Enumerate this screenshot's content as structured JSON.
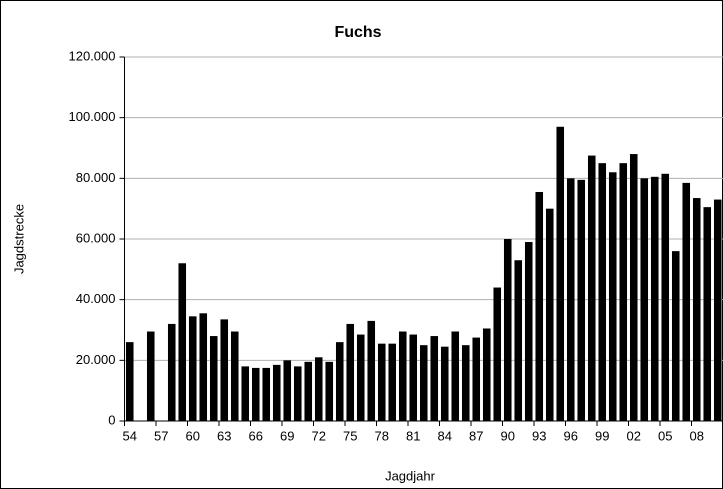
{
  "chart_data": {
    "type": "bar",
    "title": "Fuchs",
    "x_label": "Jagdjahr",
    "y_label": "Jagdstrecke",
    "categories": [
      "54",
      null,
      null,
      "57",
      null,
      null,
      "60",
      null,
      null,
      "63",
      null,
      null,
      "66",
      null,
      null,
      "69",
      null,
      null,
      "72",
      null,
      null,
      "75",
      null,
      null,
      "78",
      null,
      null,
      "81",
      null,
      null,
      "84",
      null,
      null,
      "87",
      null,
      null,
      "90",
      null,
      null,
      "93",
      null,
      null,
      "96",
      null,
      null,
      "99",
      null,
      null,
      "02",
      null,
      null,
      "05",
      null,
      null,
      "08",
      null,
      null
    ],
    "values": [
      26000,
      null,
      29500,
      null,
      32000,
      52000,
      34500,
      35500,
      28000,
      33500,
      29500,
      18000,
      17500,
      17500,
      18500,
      20000,
      18000,
      19500,
      21000,
      19500,
      26000,
      32000,
      28500,
      33000,
      25500,
      25500,
      29500,
      28500,
      25000,
      28000,
      24500,
      29500,
      25000,
      27500,
      30500,
      44000,
      60000,
      53000,
      59000,
      75500,
      70000,
      97000,
      80000,
      79500,
      87500,
      85000,
      82000,
      85000,
      88000,
      80000,
      80500,
      81500,
      56000,
      78500,
      73500,
      70500,
      73000
    ],
    "color": "#000000",
    "ylim": [
      0,
      120000
    ],
    "yticks": [
      0,
      {
        "value": 20000,
        "label": "20.000"
      },
      {
        "value": 40000,
        "label": "40.000"
      },
      {
        "value": 60000,
        "label": "60.000"
      },
      {
        "value": 80000,
        "label": "80.000"
      },
      {
        "value": 100000,
        "label": "100.000"
      },
      {
        "value": 120000,
        "label": "120.000"
      }
    ],
    "grid": true
  }
}
